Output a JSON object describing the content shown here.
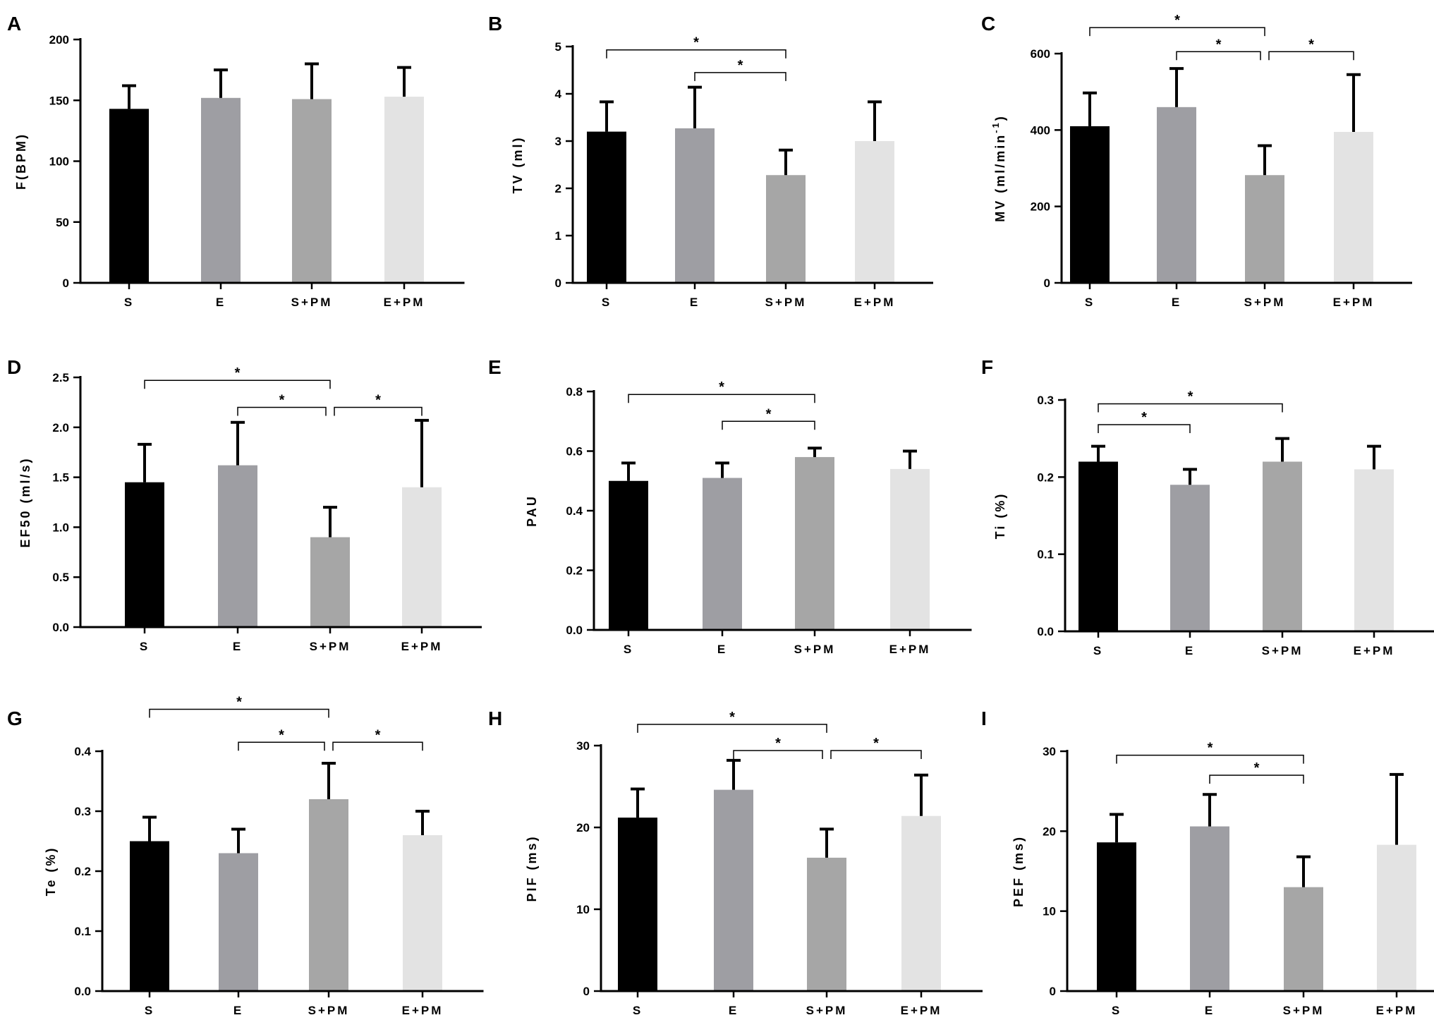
{
  "figure": {
    "colors": {
      "S": "#000000",
      "E": "#9e9ea3",
      "S+PM": "#a6a6a6",
      "E+PM": "#e3e3e3",
      "axis": "#000000",
      "bracket": "#000000"
    }
  },
  "chart_data": [
    {
      "type": "bar",
      "panel": "A",
      "ylabel": "F(BPM)",
      "categories": [
        "S",
        "E",
        "S+PM",
        "E+PM"
      ],
      "values": [
        143,
        152,
        151,
        153
      ],
      "errors": [
        19,
        23,
        29,
        24
      ],
      "ylim": [
        0,
        200
      ],
      "yticks": [
        "0",
        "50",
        "100",
        "150",
        "200"
      ],
      "ytick_values": [
        0,
        50,
        100,
        150,
        200
      ],
      "brackets": []
    },
    {
      "type": "bar",
      "panel": "B",
      "ylabel": "TV (ml)",
      "categories": [
        "S",
        "E",
        "S+PM",
        "E+PM"
      ],
      "values": [
        3.2,
        3.27,
        2.28,
        3.0
      ],
      "errors": [
        0.63,
        0.87,
        0.53,
        0.83
      ],
      "ylim": [
        0,
        5
      ],
      "yticks": [
        "0",
        "1",
        "2",
        "3",
        "4",
        "5"
      ],
      "ytick_values": [
        0,
        1,
        2,
        3,
        4,
        5
      ],
      "brackets": [
        {
          "from": 0,
          "to": 2,
          "y": 4.93,
          "label": "*"
        },
        {
          "from": 1,
          "to": 2,
          "y": 4.45,
          "label": "*"
        }
      ]
    },
    {
      "type": "bar",
      "panel": "C",
      "ylabel": "MV (ml/min",
      "ylabel_sup": "-1",
      "ylabel_end": ")",
      "categories": [
        "S",
        "E",
        "S+PM",
        "E+PM"
      ],
      "values": [
        410,
        460,
        282,
        395
      ],
      "errors": [
        87,
        101,
        77,
        150
      ],
      "ylim": [
        0,
        600
      ],
      "yticks": [
        "0",
        "200",
        "400",
        "600"
      ],
      "ytick_values": [
        0,
        200,
        400,
        600
      ],
      "brackets": [
        {
          "from": 0,
          "to": 2,
          "y": 668,
          "label": "*"
        },
        {
          "from": 1,
          "to": 2,
          "y": 605,
          "label": "*"
        },
        {
          "from": 2,
          "to": 3,
          "y": 605,
          "label": "*"
        }
      ]
    },
    {
      "type": "bar",
      "panel": "D",
      "ylabel": "EF50 (ml/s)",
      "categories": [
        "S",
        "E",
        "S+PM",
        "E+PM"
      ],
      "values": [
        1.45,
        1.62,
        0.9,
        1.4
      ],
      "errors": [
        0.38,
        0.43,
        0.3,
        0.67
      ],
      "ylim": [
        0,
        2.5
      ],
      "yticks": [
        "0.0",
        "0.5",
        "1.0",
        "1.5",
        "2.0",
        "2.5"
      ],
      "ytick_values": [
        0,
        0.5,
        1,
        1.5,
        2,
        2.5
      ],
      "brackets": [
        {
          "from": 0,
          "to": 2,
          "y": 2.47,
          "label": "*"
        },
        {
          "from": 1,
          "to": 2,
          "y": 2.2,
          "label": "*"
        },
        {
          "from": 2,
          "to": 3,
          "y": 2.2,
          "label": "*"
        }
      ]
    },
    {
      "type": "bar",
      "panel": "E",
      "ylabel": "PAU",
      "categories": [
        "S",
        "E",
        "S+PM",
        "E+PM"
      ],
      "values": [
        0.5,
        0.51,
        0.58,
        0.54
      ],
      "errors": [
        0.06,
        0.05,
        0.03,
        0.06
      ],
      "ylim": [
        0,
        0.8
      ],
      "yticks": [
        "0.0",
        "0.2",
        "0.4",
        "0.6",
        "0.8"
      ],
      "ytick_values": [
        0,
        0.2,
        0.4,
        0.6,
        0.8
      ],
      "brackets": [
        {
          "from": 0,
          "to": 2,
          "y": 0.79,
          "label": "*"
        },
        {
          "from": 1,
          "to": 2,
          "y": 0.7,
          "label": "*"
        }
      ]
    },
    {
      "type": "bar",
      "panel": "F",
      "ylabel": "Ti (%)",
      "categories": [
        "S",
        "E",
        "S+PM",
        "E+PM"
      ],
      "values": [
        0.22,
        0.19,
        0.22,
        0.21
      ],
      "errors": [
        0.02,
        0.02,
        0.03,
        0.03
      ],
      "ylim": [
        0,
        0.3
      ],
      "yticks": [
        "0.0",
        "0.1",
        "0.2",
        "0.3"
      ],
      "ytick_values": [
        0,
        0.1,
        0.2,
        0.3
      ],
      "brackets": [
        {
          "from": 0,
          "to": 2,
          "y": 0.295,
          "label": "*"
        },
        {
          "from": 0,
          "to": 1,
          "y": 0.268,
          "label": "*"
        }
      ]
    },
    {
      "type": "bar",
      "panel": "G",
      "ylabel": "Te (%)",
      "categories": [
        "S",
        "E",
        "S+PM",
        "E+PM"
      ],
      "values": [
        0.25,
        0.23,
        0.32,
        0.26
      ],
      "errors": [
        0.04,
        0.04,
        0.06,
        0.04
      ],
      "ylim": [
        0,
        0.4
      ],
      "yticks": [
        "0.0",
        "0.1",
        "0.2",
        "0.3",
        "0.4"
      ],
      "ytick_values": [
        0,
        0.1,
        0.2,
        0.3,
        0.4
      ],
      "brackets": [
        {
          "from": 0,
          "to": 2,
          "y": 0.47,
          "label": "*"
        },
        {
          "from": 1,
          "to": 2,
          "y": 0.415,
          "label": "*"
        },
        {
          "from": 2,
          "to": 3,
          "y": 0.415,
          "label": "*"
        }
      ]
    },
    {
      "type": "bar",
      "panel": "H",
      "ylabel": "PIF (ms)",
      "categories": [
        "S",
        "E",
        "S+PM",
        "E+PM"
      ],
      "values": [
        21.2,
        24.6,
        16.3,
        21.4
      ],
      "errors": [
        3.5,
        3.6,
        3.5,
        5.0
      ],
      "ylim": [
        0,
        30
      ],
      "yticks": [
        "0",
        "10",
        "20",
        "30"
      ],
      "ytick_values": [
        0,
        10,
        20,
        30
      ],
      "brackets": [
        {
          "from": 0,
          "to": 2,
          "y": 32.6,
          "label": "*"
        },
        {
          "from": 1,
          "to": 2,
          "y": 29.4,
          "label": "*"
        },
        {
          "from": 2,
          "to": 3,
          "y": 29.4,
          "label": "*"
        }
      ]
    },
    {
      "type": "bar",
      "panel": "I",
      "ylabel": "PEF (ms)",
      "categories": [
        "S",
        "E",
        "S+PM",
        "E+PM"
      ],
      "values": [
        18.6,
        20.6,
        13.0,
        18.3
      ],
      "errors": [
        3.5,
        4.0,
        3.8,
        8.8
      ],
      "ylim": [
        0,
        30
      ],
      "yticks": [
        "0",
        "10",
        "20",
        "30"
      ],
      "ytick_values": [
        0,
        10,
        20,
        30
      ],
      "brackets": [
        {
          "from": 0,
          "to": 2,
          "y": 29.5,
          "label": "*"
        },
        {
          "from": 1,
          "to": 2,
          "y": 27.0,
          "label": "*"
        }
      ]
    }
  ]
}
